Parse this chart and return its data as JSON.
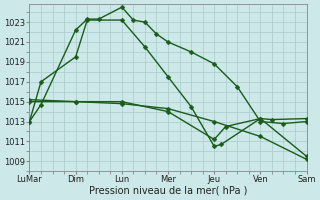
{
  "background_color": "#cce8e8",
  "grid_color": "#aacccc",
  "line_color": "#1a5c1a",
  "xlabel": "Pression niveau de la mer( hPa )",
  "yticks": [
    1009,
    1011,
    1013,
    1015,
    1017,
    1019,
    1021,
    1023
  ],
  "ylim": [
    1008.0,
    1024.8
  ],
  "xlim": [
    0,
    12
  ],
  "xtick_labels": [
    "LuMar",
    "Dim",
    "Lun",
    "Mer",
    "Jeu",
    "Ven",
    "Sam"
  ],
  "xtick_positions": [
    0,
    2,
    4,
    6,
    8,
    10,
    12
  ],
  "series": [
    {
      "x": [
        0,
        0.5,
        2,
        2.5,
        3,
        4,
        4.5,
        5,
        5.5,
        6,
        7,
        8,
        9,
        10,
        11,
        12
      ],
      "y": [
        1013.0,
        1014.7,
        1022.2,
        1023.3,
        1023.3,
        1024.5,
        1023.2,
        1023.0,
        1021.8,
        1021.0,
        1020.0,
        1018.8,
        1016.5,
        1013.0,
        1012.8,
        1013.0
      ]
    },
    {
      "x": [
        0,
        0.5,
        2,
        2.5,
        4,
        5,
        6,
        7,
        8,
        8.3,
        10,
        10.5,
        12
      ],
      "y": [
        1013.0,
        1017.0,
        1019.5,
        1023.2,
        1023.2,
        1020.5,
        1017.5,
        1014.5,
        1010.5,
        1010.7,
        1013.3,
        1013.2,
        1013.3
      ]
    },
    {
      "x": [
        0,
        2,
        4,
        6,
        8,
        10,
        12
      ],
      "y": [
        1015.0,
        1015.0,
        1014.8,
        1014.3,
        1013.0,
        1011.5,
        1009.2
      ]
    },
    {
      "x": [
        0,
        2,
        4,
        6,
        8,
        8.5,
        10,
        12
      ],
      "y": [
        1015.2,
        1015.0,
        1015.0,
        1014.0,
        1011.2,
        1012.5,
        1013.3,
        1009.5
      ]
    }
  ],
  "figsize": [
    3.2,
    2.0
  ],
  "dpi": 100,
  "xlabel_fontsize": 7,
  "tick_fontsize": 6,
  "linewidth": 1.0,
  "markersize": 2.5
}
